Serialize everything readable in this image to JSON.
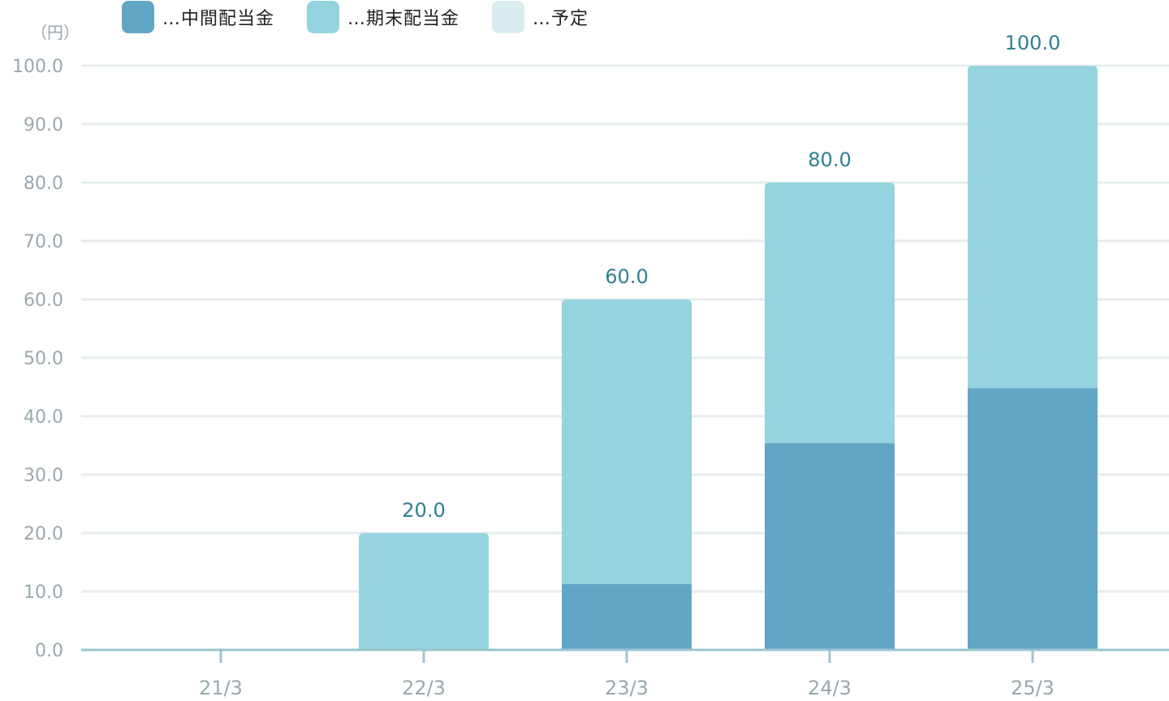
{
  "unit_label": "（円）",
  "legend": [
    {
      "label": "…中間配当金",
      "color": "#62a6c6",
      "icon": "swatch-interim"
    },
    {
      "label": "…期末配当金",
      "color": "#95d3df",
      "icon": "swatch-yearend"
    },
    {
      "label": "…予定",
      "color": "#d9ecf0",
      "icon": "swatch-planned"
    }
  ],
  "chart_data": {
    "type": "bar",
    "stacked": true,
    "categories": [
      "21/3",
      "22/3",
      "23/3",
      "24/3",
      "25/3"
    ],
    "series": [
      {
        "name": "中間配当金",
        "color": "#62a6c6",
        "values": [
          0,
          0,
          11.3,
          35.4,
          44.8
        ]
      },
      {
        "name": "期末配当金",
        "color": "#95d3df",
        "values": [
          0,
          20.0,
          48.7,
          44.6,
          55.2
        ]
      }
    ],
    "totals_labels": [
      "",
      "20.0",
      "60.0",
      "80.0",
      "100.0"
    ],
    "yticks": [
      "0.0",
      "10.0",
      "20.0",
      "30.0",
      "40.0",
      "50.0",
      "60.0",
      "70.0",
      "80.0",
      "90.0",
      "100.0"
    ],
    "ylim": [
      0,
      100
    ],
    "grid": true,
    "colors": {
      "grid": "#e6ecee",
      "axis": "#9cc4cf",
      "tick_text": "#9aa8ae",
      "value_text": "#2d8091"
    }
  }
}
